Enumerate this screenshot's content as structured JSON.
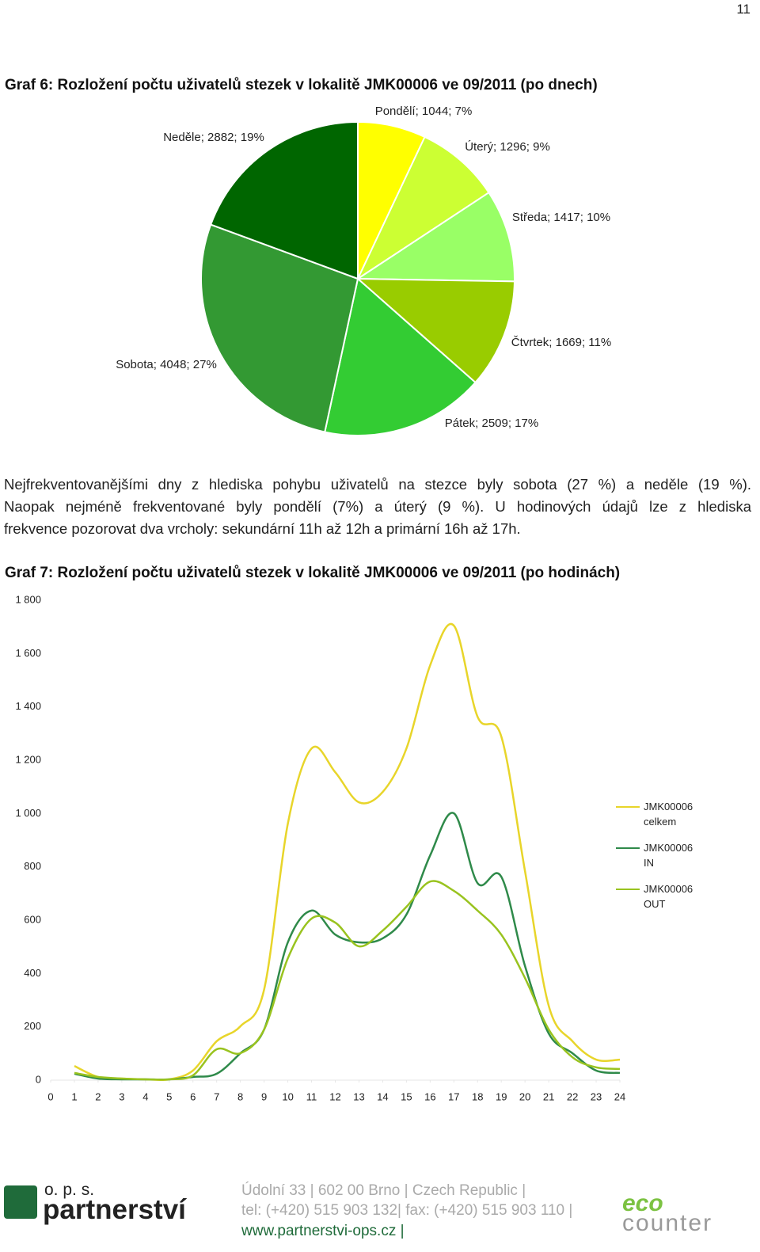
{
  "page_number": "11",
  "chart_data": [
    {
      "type": "pie",
      "title": "Graf 6: Rozložení počtu uživatelů stezek v lokalitě JMK00006 ve 09/2011 (po dnech)",
      "values": [
        1044,
        1296,
        1417,
        1669,
        2509,
        4048,
        2882
      ],
      "value_labels": [
        "Pondělí; 1044; 7%",
        "Úterý; 1296; 9%",
        "Středa; 1417; 10%",
        "Čtvrtek; 1669; 11%",
        "Pátek; 2509; 17%",
        "Sobota; 4048; 27%",
        "Neděle; 2882; 19%"
      ],
      "colors": [
        "#ffff00",
        "#ccff33",
        "#99ff66",
        "#99cc00",
        "#33cc33",
        "#339933",
        "#006600"
      ]
    },
    {
      "type": "line",
      "title": "Graf 7: Rozložení počtu uživatelů stezek v lokalitě JMK00006 ve 09/2011 (po hodinách)",
      "x": [
        1,
        2,
        3,
        4,
        5,
        6,
        7,
        8,
        9,
        10,
        11,
        12,
        13,
        14,
        15,
        16,
        17,
        18,
        19,
        20,
        21,
        22,
        23,
        24
      ],
      "series": [
        {
          "name": "JMK00006 celkem",
          "color": "#e8d52a",
          "values": [
            53,
            12,
            6,
            3,
            3,
            36,
            146,
            202,
            340,
            962,
            1244,
            1155,
            1042,
            1081,
            1244,
            1556,
            1705,
            1363,
            1289,
            784,
            279,
            146,
            77,
            77
          ]
        },
        {
          "name": "JMK00006 IN",
          "color": "#2f8a4a",
          "values": [
            24,
            6,
            3,
            3,
            3,
            12,
            24,
            101,
            190,
            517,
            636,
            546,
            517,
            532,
            621,
            843,
            1001,
            739,
            763,
            428,
            175,
            101,
            36,
            27
          ]
        },
        {
          "name": "JMK00006 OUT",
          "color": "#99c31f",
          "values": [
            27,
            12,
            6,
            3,
            3,
            18,
            116,
            101,
            190,
            457,
            606,
            591,
            502,
            561,
            650,
            745,
            710,
            636,
            546,
            383,
            190,
            86,
            48,
            42
          ]
        }
      ],
      "xlim": [
        0,
        24
      ],
      "xticks": [
        0,
        1,
        2,
        3,
        4,
        5,
        6,
        7,
        8,
        9,
        10,
        11,
        12,
        13,
        14,
        15,
        16,
        17,
        18,
        19,
        20,
        21,
        22,
        23,
        24
      ],
      "ylim": [
        0,
        1800
      ],
      "yticks": [
        0,
        200,
        400,
        600,
        800,
        {
          "value": 1000,
          "label": "1 000"
        },
        {
          "value": 1200,
          "label": "1 200"
        },
        {
          "value": 1400,
          "label": "1 400"
        },
        {
          "value": 1600,
          "label": "1 600"
        },
        {
          "value": 1800,
          "label": "1 800"
        }
      ],
      "grid": false,
      "legend": "right"
    }
  ],
  "paragraph": [
    "Nejfrekventovanějšími dny z hlediska pohybu uživatelů na stezce byly sobota (27 %) a neděle (19 %).",
    "Naopak nejméně frekventované byly pondělí (7%) a úterý (9 %). U hodinových údajů lze z hlediska",
    "frekvence pozorovat dva vrcholy: sekundární 11h až 12h a primární 16h až 17h."
  ],
  "footer": {
    "logo_small": "o. p. s.",
    "logo_name": "partnerství",
    "address": [
      "Údolní 33 | 602 00 Brno | Czech Republic |",
      "tel: (+420) 515 903 132| fax: (+420) 515 903 110 |"
    ],
    "web": "www.partnerstvi-ops.cz |",
    "logo_eco": "eco",
    "logo_counter": "counter"
  }
}
